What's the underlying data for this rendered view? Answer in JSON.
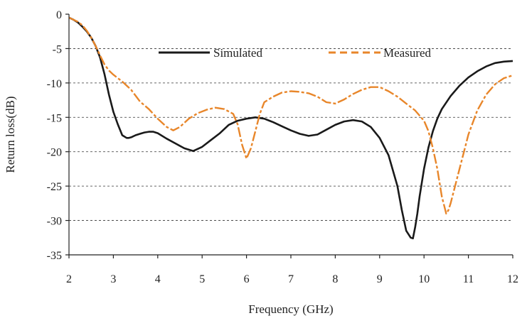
{
  "chart_data": {
    "type": "line",
    "title": "",
    "xlabel": "Frequency (GHz)",
    "ylabel": "Return loss(dB)",
    "xlim": [
      2,
      12
    ],
    "ylim": [
      -35,
      0
    ],
    "xticks": [
      2,
      3,
      4,
      5,
      6,
      7,
      8,
      9,
      10,
      11,
      12
    ],
    "yticks": [
      0,
      -5,
      -10,
      -15,
      -20,
      -25,
      -30,
      -35
    ],
    "grid": "horizontal dashed",
    "legend_position": "top-center",
    "series": [
      {
        "name": "Simulated",
        "color": "#1a1a1a",
        "style": "solid",
        "x": [
          2.0,
          2.1,
          2.2,
          2.3,
          2.4,
          2.5,
          2.6,
          2.7,
          2.8,
          2.9,
          3.0,
          3.1,
          3.2,
          3.3,
          3.35,
          3.4,
          3.5,
          3.6,
          3.7,
          3.8,
          3.9,
          4.0,
          4.2,
          4.4,
          4.6,
          4.8,
          5.0,
          5.2,
          5.4,
          5.6,
          5.8,
          6.0,
          6.2,
          6.4,
          6.6,
          6.8,
          7.0,
          7.2,
          7.4,
          7.6,
          7.8,
          8.0,
          8.2,
          8.4,
          8.6,
          8.8,
          9.0,
          9.2,
          9.4,
          9.5,
          9.6,
          9.7,
          9.75,
          9.8,
          9.85,
          9.9,
          10.0,
          10.1,
          10.2,
          10.3,
          10.4,
          10.6,
          10.8,
          11.0,
          11.2,
          11.4,
          11.6,
          11.8,
          12.0
        ],
        "y": [
          -0.5,
          -0.8,
          -1.2,
          -1.8,
          -2.5,
          -3.4,
          -4.6,
          -6.3,
          -8.7,
          -11.7,
          -14.2,
          -16.0,
          -17.6,
          -18.0,
          -18.0,
          -17.9,
          -17.6,
          -17.4,
          -17.2,
          -17.1,
          -17.1,
          -17.3,
          -18.1,
          -18.8,
          -19.5,
          -19.9,
          -19.3,
          -18.3,
          -17.3,
          -16.1,
          -15.5,
          -15.2,
          -15.0,
          -15.2,
          -15.7,
          -16.3,
          -16.9,
          -17.4,
          -17.7,
          -17.5,
          -16.8,
          -16.1,
          -15.6,
          -15.4,
          -15.6,
          -16.4,
          -18.0,
          -20.5,
          -25.0,
          -28.5,
          -31.5,
          -32.5,
          -32.6,
          -31.0,
          -29.0,
          -26.5,
          -22.5,
          -19.4,
          -17.0,
          -15.2,
          -13.8,
          -11.9,
          -10.4,
          -9.2,
          -8.3,
          -7.6,
          -7.1,
          -6.9,
          -6.8
        ]
      },
      {
        "name": "Measured",
        "color": "#e8862a",
        "style": "dashed",
        "x": [
          2.0,
          2.1,
          2.2,
          2.3,
          2.4,
          2.5,
          2.6,
          2.7,
          2.8,
          2.9,
          3.0,
          3.2,
          3.4,
          3.6,
          3.8,
          4.0,
          4.2,
          4.35,
          4.5,
          4.7,
          4.9,
          5.1,
          5.3,
          5.5,
          5.7,
          5.8,
          5.9,
          6.0,
          6.1,
          6.2,
          6.3,
          6.4,
          6.6,
          6.8,
          7.0,
          7.2,
          7.4,
          7.6,
          7.8,
          8.0,
          8.2,
          8.4,
          8.6,
          8.8,
          9.0,
          9.2,
          9.4,
          9.6,
          9.8,
          10.0,
          10.1,
          10.2,
          10.3,
          10.4,
          10.5,
          10.55,
          10.6,
          10.7,
          10.8,
          10.9,
          11.0,
          11.2,
          11.4,
          11.6,
          11.8,
          12.0
        ],
        "y": [
          -0.5,
          -0.8,
          -1.1,
          -1.6,
          -2.4,
          -3.4,
          -4.6,
          -6.0,
          -7.3,
          -8.2,
          -8.8,
          -9.8,
          -11.0,
          -12.7,
          -13.8,
          -15.2,
          -16.4,
          -16.9,
          -16.4,
          -15.2,
          -14.4,
          -13.9,
          -13.6,
          -13.8,
          -14.5,
          -16.0,
          -19.0,
          -21.0,
          -19.5,
          -17.0,
          -14.5,
          -12.8,
          -12.0,
          -11.4,
          -11.2,
          -11.3,
          -11.5,
          -12.0,
          -12.8,
          -13.0,
          -12.4,
          -11.6,
          -11.0,
          -10.6,
          -10.6,
          -11.2,
          -12.0,
          -13.0,
          -14.0,
          -15.5,
          -17.0,
          -19.5,
          -22.5,
          -26.5,
          -29.0,
          -28.5,
          -27.5,
          -25.0,
          -22.5,
          -20.0,
          -17.5,
          -14.0,
          -11.7,
          -10.2,
          -9.3,
          -8.9
        ]
      }
    ]
  }
}
